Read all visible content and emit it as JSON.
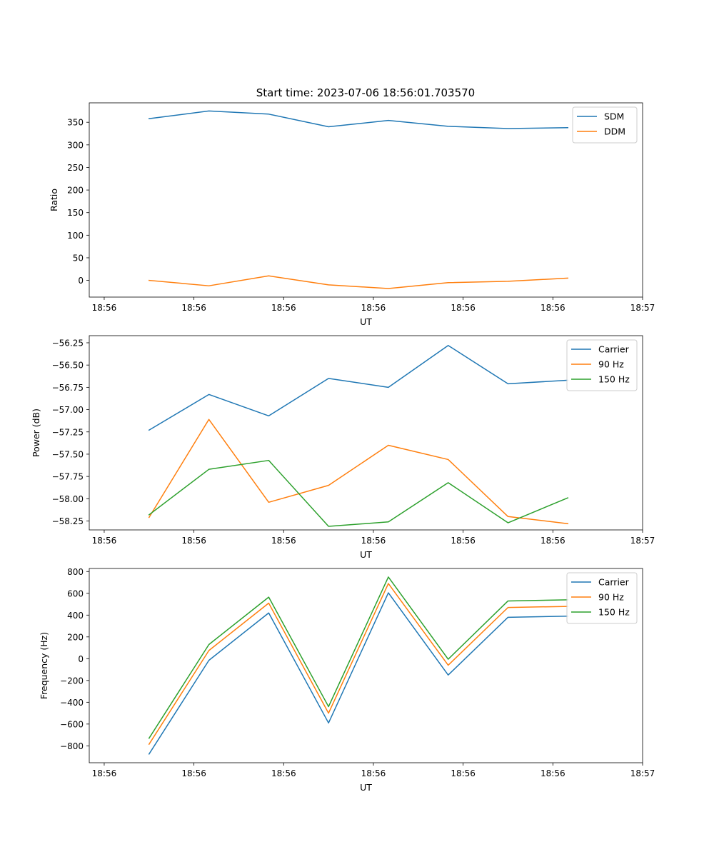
{
  "chart_data": [
    {
      "type": "line",
      "title": "Start time: 2023-07-06 18:56:01.703570",
      "xlabel": "UT",
      "ylabel": "Ratio",
      "xlim": [
        0,
        9.25
      ],
      "ylim": [
        -37,
        393
      ],
      "x": [
        1,
        2,
        3,
        4,
        5,
        6,
        7,
        8
      ],
      "x_tick_positions": [
        0.25,
        1.75,
        3.25,
        4.75,
        6.25,
        7.75,
        9.25
      ],
      "x_tick_labels": [
        "18:56",
        "18:56",
        "18:56",
        "18:56",
        "18:56",
        "18:56",
        "18:57"
      ],
      "y_ticks": [
        0,
        50,
        100,
        150,
        200,
        250,
        300,
        350
      ],
      "y_tick_labels": [
        "0",
        "50",
        "100",
        "150",
        "200",
        "250",
        "300",
        "350"
      ],
      "legend_position": "top-right",
      "series": [
        {
          "name": "SDM",
          "color": "#1f77b4",
          "values": [
            358,
            375,
            368,
            340,
            354,
            341,
            336,
            338
          ]
        },
        {
          "name": "DDM",
          "color": "#ff7f0e",
          "values": [
            0,
            -12,
            10,
            -10,
            -18,
            -5,
            -2,
            5
          ]
        }
      ]
    },
    {
      "type": "line",
      "title": "",
      "xlabel": "UT",
      "ylabel": "Power (dB)",
      "xlim": [
        0,
        9.25
      ],
      "ylim": [
        -58.35,
        -56.17
      ],
      "x": [
        1,
        2,
        3,
        4,
        5,
        6,
        7,
        8
      ],
      "x_tick_positions": [
        0.25,
        1.75,
        3.25,
        4.75,
        6.25,
        7.75,
        9.25
      ],
      "x_tick_labels": [
        "18:56",
        "18:56",
        "18:56",
        "18:56",
        "18:56",
        "18:56",
        "18:57"
      ],
      "y_ticks": [
        -58.25,
        -58.0,
        -57.75,
        -57.5,
        -57.25,
        -57.0,
        -56.75,
        -56.5,
        -56.25
      ],
      "y_tick_labels": [
        "−58.25",
        "−58.00",
        "−57.75",
        "−57.50",
        "−57.25",
        "−57.00",
        "−56.75",
        "−56.50",
        "−56.25"
      ],
      "legend_position": "top-right",
      "series": [
        {
          "name": "Carrier",
          "color": "#1f77b4",
          "values": [
            -57.23,
            -56.83,
            -57.07,
            -56.65,
            -56.75,
            -56.28,
            -56.71,
            -56.67
          ]
        },
        {
          "name": "90 Hz",
          "color": "#ff7f0e",
          "values": [
            -58.21,
            -57.11,
            -58.04,
            -57.85,
            -57.4,
            -57.56,
            -58.2,
            -58.28
          ]
        },
        {
          "name": "150 Hz",
          "color": "#2ca02c",
          "values": [
            -58.18,
            -57.67,
            -57.57,
            -58.31,
            -58.26,
            -57.82,
            -58.27,
            -57.99
          ]
        }
      ]
    },
    {
      "type": "line",
      "title": "",
      "xlabel": "UT",
      "ylabel": "Frequency (Hz)",
      "xlim": [
        0,
        9.25
      ],
      "ylim": [
        -955,
        828
      ],
      "x": [
        1,
        2,
        3,
        4,
        5,
        6,
        7,
        8
      ],
      "x_tick_positions": [
        0.25,
        1.75,
        3.25,
        4.75,
        6.25,
        7.75,
        9.25
      ],
      "x_tick_labels": [
        "18:56",
        "18:56",
        "18:56",
        "18:56",
        "18:56",
        "18:56",
        "18:57"
      ],
      "y_ticks": [
        -800,
        -600,
        -400,
        -200,
        0,
        200,
        400,
        600,
        800
      ],
      "y_tick_labels": [
        "−800",
        "−600",
        "−400",
        "−200",
        "0",
        "200",
        "400",
        "600",
        "800"
      ],
      "legend_position": "top-right",
      "series": [
        {
          "name": "Carrier",
          "color": "#1f77b4",
          "values": [
            -875,
            -15,
            420,
            -590,
            605,
            -150,
            380,
            390
          ]
        },
        {
          "name": "90 Hz",
          "color": "#ff7f0e",
          "values": [
            -785,
            75,
            510,
            -500,
            690,
            -60,
            470,
            480
          ]
        },
        {
          "name": "150 Hz",
          "color": "#2ca02c",
          "values": [
            -730,
            130,
            565,
            -440,
            750,
            -5,
            530,
            540
          ]
        }
      ]
    }
  ]
}
